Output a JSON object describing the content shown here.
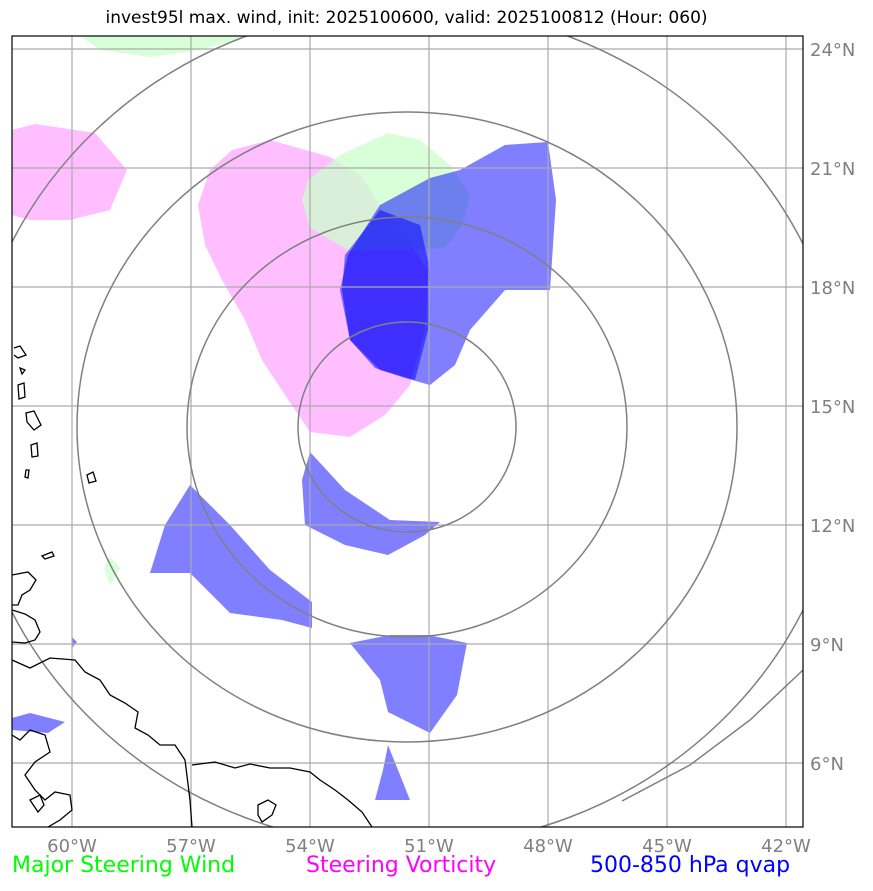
{
  "title": "invest95l max. wind, init: 2025100600, valid: 2025100812 (Hour: 060)",
  "lon_labels": [
    "60°W",
    "57°W",
    "54°W",
    "51°W",
    "48°W",
    "45°W",
    "42°W"
  ],
  "lat_labels": [
    "24°N",
    "21°N",
    "18°N",
    "15°N",
    "12°N",
    "9°N",
    "6°N"
  ],
  "legend": {
    "wind": "Major Steering Wind",
    "vorticity": "Steering Vorticity",
    "qvap": "500-850 hPa qvap"
  },
  "colors": {
    "wind": "#00ff00",
    "vorticity": "#ff00ff",
    "qvap": "#0000ff",
    "wind_fill": "#ccffcc",
    "vorticity_fill": "#ffaaff",
    "qvap_fill": "#5555ff",
    "gridline": "#aaaaaa",
    "range_ring": "#808080",
    "coastline": "#000000"
  }
}
